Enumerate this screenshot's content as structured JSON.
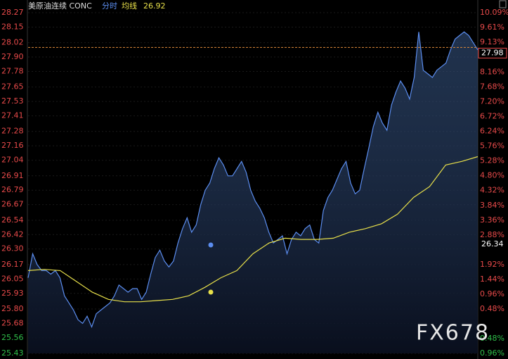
{
  "chart_data": {
    "type": "line",
    "title": "美原油连续 CONC",
    "avg_value": 26.92,
    "watermark": "FX678",
    "ylim": [
      25.43,
      28.27
    ],
    "yticks": [
      28.27,
      28.15,
      28.02,
      {
        "value": 27.9,
        "label": "27.90"
      },
      27.78,
      27.65,
      27.53,
      27.41,
      27.28,
      27.16,
      27.04,
      26.91,
      26.79,
      26.67,
      26.54,
      26.42,
      {
        "value": 26.3,
        "label": "26.30"
      },
      26.17,
      26.05,
      25.93,
      {
        "value": 25.8,
        "label": "25.80"
      },
      25.68,
      25.56,
      25.43
    ],
    "y2lim": [
      -0.96,
      10.09
    ],
    "y2ticks": [
      {
        "value": 10.09,
        "label": "10.09%"
      },
      {
        "value": 9.61,
        "label": "9.61%"
      },
      {
        "value": 9.13,
        "label": "9.13%"
      },
      {
        "value": 8.16,
        "label": "8.16%"
      },
      {
        "value": 7.68,
        "label": "7.68%"
      },
      {
        "value": 7.2,
        "label": "7.20%"
      },
      {
        "value": 6.72,
        "label": "6.72%"
      },
      {
        "value": 6.24,
        "label": "6.24%"
      },
      {
        "value": 5.76,
        "label": "5.76%"
      },
      {
        "value": 5.28,
        "label": "5.28%"
      },
      {
        "value": 4.8,
        "label": "4.80%"
      },
      {
        "value": 4.32,
        "label": "4.32%"
      },
      {
        "value": 3.84,
        "label": "3.84%"
      },
      {
        "value": 3.36,
        "label": "3.36%"
      },
      {
        "value": 2.88,
        "label": "2.88%"
      },
      {
        "value": 1.92,
        "label": "1.92%"
      },
      {
        "value": 1.44,
        "label": "1.44%"
      },
      {
        "value": 0.96,
        "label": "0.96%"
      },
      {
        "value": 0.48,
        "label": "0.48%"
      },
      {
        "value": -0.48,
        "label": "0.48%"
      },
      {
        "value": -0.96,
        "label": "0.96%"
      }
    ],
    "last_price": 27.98,
    "marker_price": 26.34,
    "grid": true,
    "series": [
      {
        "name": "分时",
        "color": "#5b8def",
        "values": [
          26.06,
          26.26,
          26.17,
          26.12,
          26.12,
          26.09,
          26.12,
          26.06,
          25.91,
          25.85,
          25.79,
          25.71,
          25.68,
          25.74,
          25.65,
          25.76,
          25.79,
          25.82,
          25.85,
          25.91,
          26.0,
          25.97,
          25.94,
          25.97,
          25.97,
          25.88,
          25.94,
          26.09,
          26.23,
          26.29,
          26.2,
          26.15,
          26.2,
          26.35,
          26.47,
          26.56,
          26.44,
          26.5,
          26.67,
          26.79,
          26.85,
          26.97,
          27.06,
          27.0,
          26.91,
          26.91,
          26.97,
          27.03,
          26.94,
          26.79,
          26.7,
          26.64,
          26.56,
          26.44,
          26.35,
          26.38,
          26.41,
          26.26,
          26.38,
          26.44,
          26.41,
          26.47,
          26.5,
          26.38,
          26.35,
          26.62,
          26.73,
          26.79,
          26.88,
          26.97,
          27.03,
          26.85,
          26.76,
          26.79,
          26.97,
          27.14,
          27.32,
          27.44,
          27.35,
          27.29,
          27.5,
          27.61,
          27.7,
          27.64,
          27.55,
          27.73,
          28.11,
          27.79,
          27.76,
          27.73,
          27.79,
          27.82,
          27.85,
          27.96,
          28.05,
          28.08,
          28.11,
          28.08,
          28.02,
          27.96
        ]
      },
      {
        "name": "均线",
        "color": "#e8e04a",
        "values": [
          26.12,
          26.13,
          26.12,
          26.03,
          25.94,
          25.88,
          25.86,
          25.86,
          25.87,
          25.88,
          25.91,
          25.98,
          26.06,
          26.12,
          26.26,
          26.35,
          26.39,
          26.38,
          26.38,
          26.39,
          26.44,
          26.47,
          26.51,
          26.59,
          26.73,
          26.82,
          27.0,
          27.03,
          27.07
        ]
      }
    ]
  }
}
